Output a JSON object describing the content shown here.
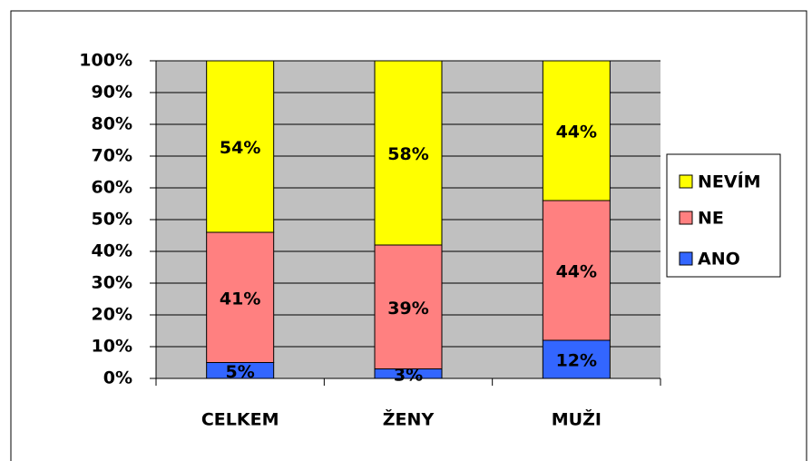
{
  "chart_data": {
    "type": "stacked_bar",
    "categories": [
      "CELKEM",
      "ŽENY",
      "MUŽI"
    ],
    "series": [
      {
        "name": "ANO",
        "color": "#3366ff",
        "values": [
          5,
          3,
          12
        ],
        "value_labels": [
          "5%",
          "3%",
          "12%"
        ]
      },
      {
        "name": "NE",
        "color": "#ff8080",
        "values": [
          41,
          39,
          44
        ],
        "value_labels": [
          "41%",
          "39%",
          "44%"
        ]
      },
      {
        "name": "NEVÍM",
        "color": "#ffff00",
        "values": [
          54,
          58,
          44
        ],
        "value_labels": [
          "54%",
          "58%",
          "44%"
        ]
      }
    ],
    "ylim": [
      0,
      100
    ],
    "yticks": [
      {
        "value": 0,
        "label": "0%"
      },
      {
        "value": 10,
        "label": "10%"
      },
      {
        "value": 20,
        "label": "20%"
      },
      {
        "value": 30,
        "label": "30%"
      },
      {
        "value": 40,
        "label": "40%"
      },
      {
        "value": 50,
        "label": "50%"
      },
      {
        "value": 60,
        "label": "60%"
      },
      {
        "value": 70,
        "label": "70%"
      },
      {
        "value": 80,
        "label": "80%"
      },
      {
        "value": 90,
        "label": "90%"
      },
      {
        "value": 100,
        "label": "100%"
      }
    ],
    "grid": true,
    "legend": "right",
    "plot_background": "#c0c0c0"
  }
}
